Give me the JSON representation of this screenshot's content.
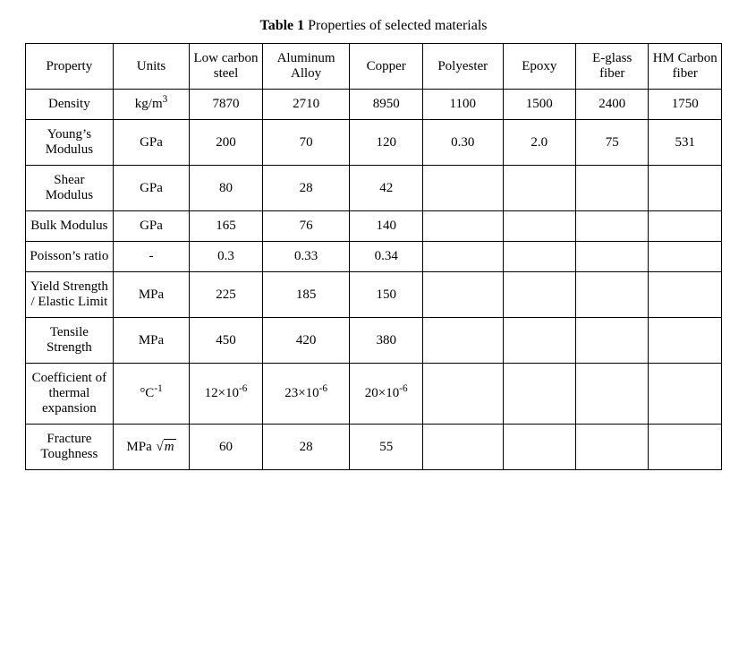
{
  "caption_label": "Table 1",
  "caption_text": " Properties of selected materials",
  "table": {
    "columns": [
      "Property",
      "Units",
      "Low carbon steel",
      "Aluminum Alloy",
      "Copper",
      "Polyester",
      "Epoxy",
      "E-glass fiber",
      "HM Carbon fiber"
    ],
    "col_classes": [
      "c0",
      "c1",
      "c2",
      "c3",
      "c4",
      "c5",
      "c6",
      "c7",
      "c8"
    ],
    "rows": [
      {
        "property": "Density",
        "units_html": "kg/m<span class=\"sup\">3</span>",
        "values": [
          "7870",
          "2710",
          "8950",
          "1100",
          "1500",
          "2400",
          "1750"
        ]
      },
      {
        "property": "Young’s Modulus",
        "units_html": "GPa",
        "values": [
          "200",
          "70",
          "120",
          "0.30",
          "2.0",
          "75",
          "531"
        ]
      },
      {
        "property": "Shear Modulus",
        "units_html": "GPa",
        "values": [
          "80",
          "28",
          "42",
          "",
          "",
          "",
          ""
        ]
      },
      {
        "property": "Bulk Modulus",
        "units_html": "GPa",
        "values": [
          "165",
          "76",
          "140",
          "",
          "",
          "",
          ""
        ]
      },
      {
        "property": "Poisson’s ratio",
        "units_html": "-",
        "values": [
          "0.3",
          "0.33",
          "0.34",
          "",
          "",
          "",
          ""
        ]
      },
      {
        "property": "Yield Strength / Elastic Limit",
        "units_html": "MPa",
        "values": [
          "225",
          "185",
          "150",
          "",
          "",
          "",
          ""
        ]
      },
      {
        "property": "Tensile Strength",
        "units_html": "MPa",
        "values": [
          "450",
          "420",
          "380",
          "",
          "",
          "",
          ""
        ]
      },
      {
        "property": "Coefficient of thermal expansion",
        "units_html": "&deg;C<span class=\"sup\">-1</span>",
        "values": [
          "12×10<span class=\"sup\">-6</span>",
          "23×10<span class=\"sup\">-6</span>",
          "20×10<span class=\"sup\">-6</span>",
          "",
          "",
          "",
          ""
        ],
        "values_html": true
      },
      {
        "property": "Fracture Toughness",
        "units_html": "MPa <span class=\"sqrt\"><span class=\"rad\">m</span></span>",
        "values": [
          "60",
          "28",
          "55",
          "",
          "",
          "",
          ""
        ]
      }
    ],
    "border_color": "#000000",
    "background_color": "#ffffff",
    "text_color": "#000000",
    "font_family": "Times New Roman",
    "font_size_pt": 12
  }
}
